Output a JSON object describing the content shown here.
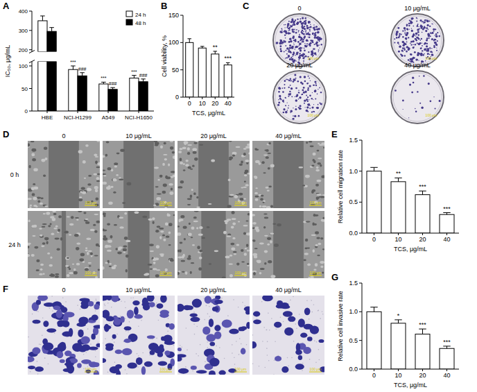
{
  "chart_data": [
    {
      "panel_label": "A",
      "type": "bar",
      "ylabel": "IC₅₀, μg/mL",
      "categories": [
        "HBE",
        "NCI-H1299",
        "A549",
        "NCI-H1650"
      ],
      "series": [
        {
          "name": "24 h",
          "color": "#ffffff",
          "values": [
            350,
            92,
            60,
            73
          ],
          "errors": [
            25,
            8,
            4,
            6
          ],
          "annotations": [
            null,
            "***",
            "***",
            "***"
          ]
        },
        {
          "name": "48 h",
          "color": "#000000",
          "values": [
            295,
            78,
            48,
            65
          ],
          "errors": [
            20,
            7,
            4,
            6
          ],
          "annotations": [
            null,
            "###",
            "###",
            "###"
          ]
        }
      ],
      "ylim": [
        0,
        400
      ],
      "ybreak": [
        110,
        190
      ],
      "yticks": [
        0,
        50,
        100,
        200,
        300,
        400
      ],
      "legend": "top-right"
    },
    {
      "panel_label": "B",
      "type": "bar",
      "ylabel": "Cell viability, %",
      "xlabel": "TCS, μg/mL",
      "categories": [
        "0",
        "10",
        "20",
        "40"
      ],
      "values": [
        100,
        90,
        79,
        59
      ],
      "errors": [
        7,
        3,
        5,
        4
      ],
      "annotations": [
        null,
        null,
        "**",
        "***"
      ],
      "color": "#ffffff",
      "ylim": [
        0,
        150
      ],
      "yticks": [
        0,
        50,
        100,
        150
      ]
    },
    {
      "panel_label": "E",
      "type": "bar",
      "ylabel": "Relative cell migration rate",
      "xlabel": "TCS, μg/mL",
      "categories": [
        "0",
        "10",
        "20",
        "40"
      ],
      "values": [
        1.0,
        0.83,
        0.62,
        0.3
      ],
      "errors": [
        0.06,
        0.06,
        0.06,
        0.03
      ],
      "annotations": [
        null,
        "**",
        "***",
        "***"
      ],
      "color": "#ffffff",
      "ylim": [
        0,
        1.5
      ],
      "yticks": [
        {
          "value": 0,
          "label": "0.0"
        },
        0.5,
        {
          "value": 1,
          "label": "1.0"
        },
        1.5
      ]
    },
    {
      "panel_label": "G",
      "type": "bar",
      "ylabel": "Relative cell invasive rate",
      "xlabel": "TCS, μg/mL",
      "categories": [
        "0",
        "10",
        "20",
        "40"
      ],
      "values": [
        1.0,
        0.8,
        0.61,
        0.36
      ],
      "errors": [
        0.08,
        0.06,
        0.09,
        0.04
      ],
      "annotations": [
        null,
        "*",
        "***",
        "***"
      ],
      "color": "#ffffff",
      "ylim": [
        0,
        1.5
      ],
      "yticks": [
        {
          "value": 0,
          "label": "0.0"
        },
        0.5,
        {
          "value": 1,
          "label": "1.0"
        },
        1.5
      ]
    }
  ],
  "images": [
    {
      "panel_label": "C",
      "labels": [
        "0",
        "10 μg/mL",
        "20 μg/mL",
        "40 μg/mL"
      ],
      "scale_bar": "100 μm"
    },
    {
      "panel_label": "D",
      "labels": [
        "0",
        "10 μg/mL",
        "20 μg/mL",
        "40 μg/mL"
      ],
      "row_labels": [
        "0 h",
        "24 h"
      ],
      "scale_bar": "100 μm"
    },
    {
      "panel_label": "F",
      "labels": [
        "0",
        "10 μg/mL",
        "20 μg/mL",
        "40 μg/mL"
      ],
      "scale_bar": "100 μm"
    }
  ]
}
